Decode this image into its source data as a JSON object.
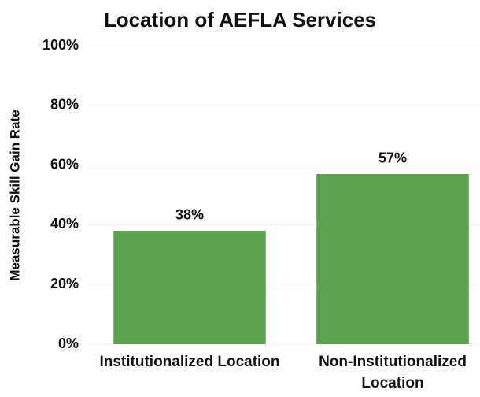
{
  "chart_data": {
    "type": "bar",
    "title": "Location of AEFLA Services",
    "ylabel": "Measurable Skill Gain Rate",
    "categories": [
      "Institutionalized Location",
      "Non-Institutionalized Location"
    ],
    "values": [
      38,
      57
    ],
    "value_labels": [
      "38%",
      "57%"
    ],
    "color": "#5ba14f",
    "ylim": [
      0,
      100
    ],
    "yticks": [
      {
        "value": 0,
        "label": "0%"
      },
      {
        "value": 20,
        "label": "20%"
      },
      {
        "value": 40,
        "label": "40%"
      },
      {
        "value": 60,
        "label": "60%"
      },
      {
        "value": 80,
        "label": "80%"
      },
      {
        "value": 100,
        "label": "100%"
      }
    ],
    "grid": true
  }
}
